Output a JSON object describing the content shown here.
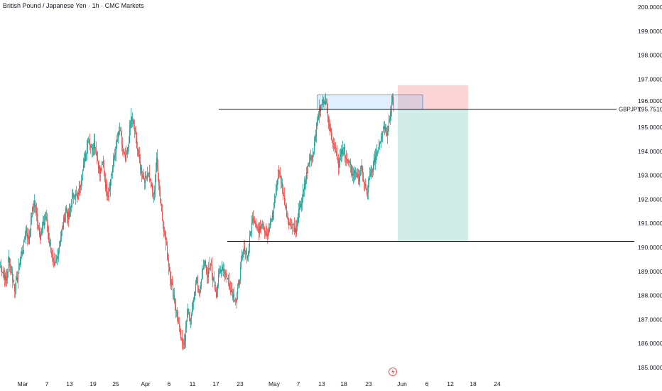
{
  "header": {
    "title": "British Pound / Japanese Yen · 1h · CMC Markets"
  },
  "chart_data": {
    "type": "candlestick",
    "symbol": "GBPJPY",
    "last_price": "195.75100",
    "ylim": [
      184.6,
      200.3
    ],
    "y_ticks": [
      "200.00000",
      "199.00000",
      "198.00000",
      "197.00000",
      "196.00000",
      "195.00000",
      "194.00000",
      "193.00000",
      "192.00000",
      "191.00000",
      "190.00000",
      "189.00000",
      "188.00000",
      "187.00000",
      "186.00000",
      "185.00000"
    ],
    "x_ticks": [
      "Mar",
      "7",
      "13",
      "19",
      "25",
      "Apr",
      "6",
      "11",
      "17",
      "23",
      "May",
      "7",
      "13",
      "18",
      "23",
      "Jun",
      "6",
      "12",
      "18",
      "24"
    ],
    "colors": {
      "up": "#26a69a",
      "down": "#ef5350",
      "line": "#131722"
    },
    "path": [
      [
        0,
        189.2
      ],
      [
        4,
        189.0
      ],
      [
        8,
        188.6
      ],
      [
        12,
        189.5
      ],
      [
        16,
        188.9
      ],
      [
        20,
        188.3
      ],
      [
        24,
        188.7
      ],
      [
        28,
        189.6
      ],
      [
        32,
        189.9
      ],
      [
        36,
        190.8
      ],
      [
        40,
        190.2
      ],
      [
        44,
        191.4
      ],
      [
        48,
        191.9
      ],
      [
        52,
        191.2
      ],
      [
        56,
        190.5
      ],
      [
        60,
        190.9
      ],
      [
        64,
        191.3
      ],
      [
        68,
        190.4
      ],
      [
        72,
        189.8
      ],
      [
        76,
        189.1
      ],
      [
        80,
        189.6
      ],
      [
        84,
        190.3
      ],
      [
        88,
        190.9
      ],
      [
        92,
        191.6
      ],
      [
        96,
        191.2
      ],
      [
        100,
        191.9
      ],
      [
        104,
        192.3
      ],
      [
        108,
        192.0
      ],
      [
        112,
        192.6
      ],
      [
        116,
        193.2
      ],
      [
        120,
        193.9
      ],
      [
        124,
        194.6
      ],
      [
        128,
        194.1
      ],
      [
        132,
        194.4
      ],
      [
        136,
        193.8
      ],
      [
        140,
        193.1
      ],
      [
        144,
        193.5
      ],
      [
        148,
        192.6
      ],
      [
        152,
        192.2
      ],
      [
        156,
        193.0
      ],
      [
        160,
        193.7
      ],
      [
        164,
        194.4
      ],
      [
        168,
        194.9
      ],
      [
        172,
        194.1
      ],
      [
        176,
        193.6
      ],
      [
        180,
        194.2
      ],
      [
        184,
        195.4
      ],
      [
        188,
        195.0
      ],
      [
        192,
        194.3
      ],
      [
        196,
        193.5
      ],
      [
        200,
        193.0
      ],
      [
        204,
        192.8
      ],
      [
        208,
        193.2
      ],
      [
        212,
        192.6
      ],
      [
        216,
        192.1
      ],
      [
        220,
        193.6
      ],
      [
        224,
        192.4
      ],
      [
        228,
        191.2
      ],
      [
        232,
        190.4
      ],
      [
        236,
        189.5
      ],
      [
        240,
        188.6
      ],
      [
        244,
        188.0
      ],
      [
        248,
        187.3
      ],
      [
        252,
        186.6
      ],
      [
        256,
        185.9
      ],
      [
        260,
        186.3
      ],
      [
        264,
        187.5
      ],
      [
        268,
        186.9
      ],
      [
        272,
        187.9
      ],
      [
        276,
        188.6
      ],
      [
        280,
        188.1
      ],
      [
        284,
        188.9
      ],
      [
        288,
        189.4
      ],
      [
        292,
        188.8
      ],
      [
        296,
        189.3
      ],
      [
        300,
        188.6
      ],
      [
        304,
        188.1
      ],
      [
        308,
        188.9
      ],
      [
        312,
        189.2
      ],
      [
        316,
        189.0
      ],
      [
        320,
        188.7
      ],
      [
        324,
        188.3
      ],
      [
        328,
        188.0
      ],
      [
        332,
        187.8
      ],
      [
        336,
        188.6
      ],
      [
        340,
        189.5
      ],
      [
        344,
        190.0
      ],
      [
        348,
        189.6
      ],
      [
        352,
        190.6
      ],
      [
        356,
        191.3
      ],
      [
        360,
        191.0
      ],
      [
        364,
        190.6
      ],
      [
        368,
        191.1
      ],
      [
        372,
        190.8
      ],
      [
        376,
        190.5
      ],
      [
        380,
        190.9
      ],
      [
        384,
        191.5
      ],
      [
        388,
        192.4
      ],
      [
        392,
        193.3
      ],
      [
        396,
        192.6
      ],
      [
        400,
        191.9
      ],
      [
        404,
        191.3
      ],
      [
        408,
        190.9
      ],
      [
        412,
        191.0
      ],
      [
        416,
        190.6
      ],
      [
        420,
        191.4
      ],
      [
        424,
        191.9
      ],
      [
        428,
        192.5
      ],
      [
        432,
        193.2
      ],
      [
        436,
        193.7
      ],
      [
        440,
        193.9
      ],
      [
        444,
        194.8
      ],
      [
        448,
        195.6
      ],
      [
        452,
        195.9
      ],
      [
        456,
        196.2
      ],
      [
        460,
        195.8
      ],
      [
        464,
        194.9
      ],
      [
        468,
        194.4
      ],
      [
        472,
        194.1
      ],
      [
        476,
        193.5
      ],
      [
        480,
        193.9
      ],
      [
        484,
        194.1
      ],
      [
        488,
        193.6
      ],
      [
        492,
        193.4
      ],
      [
        496,
        193.0
      ],
      [
        500,
        193.2
      ],
      [
        504,
        192.8
      ],
      [
        508,
        193.3
      ],
      [
        512,
        192.7
      ],
      [
        516,
        192.2
      ],
      [
        520,
        192.9
      ],
      [
        524,
        193.3
      ],
      [
        528,
        193.8
      ],
      [
        532,
        194.2
      ],
      [
        536,
        194.6
      ],
      [
        540,
        195.1
      ],
      [
        544,
        194.8
      ],
      [
        548,
        195.4
      ],
      [
        552,
        196.2
      ],
      [
        554,
        195.8
      ]
    ],
    "levels": [
      {
        "name": "resistance",
        "price": 195.75
      },
      {
        "name": "support",
        "price": 190.25
      }
    ],
    "supply_zone": {
      "price_top": 196.35,
      "price_bottom": 195.75
    },
    "short_position": {
      "entry": 195.75,
      "stop": 196.75,
      "target": 190.25,
      "colors": {
        "stop": "#fbd4d6",
        "target": "#d2ede8"
      }
    },
    "grid": false
  }
}
